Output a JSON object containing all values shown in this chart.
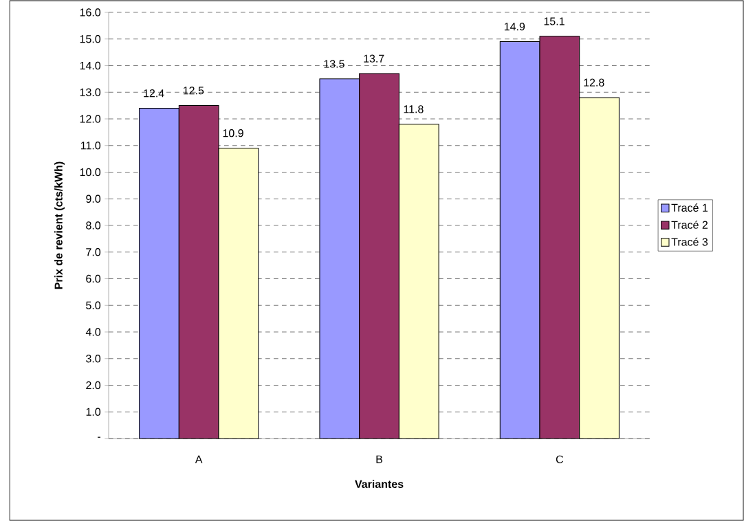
{
  "chart_data": {
    "type": "bar",
    "xlabel": "Variantes",
    "ylabel": "Prix de revient (cts/kWh)",
    "categories": [
      "A",
      "B",
      "C"
    ],
    "series": [
      {
        "name": "Tracé 1",
        "color": "#9999ff",
        "values": [
          12.4,
          13.5,
          14.9
        ]
      },
      {
        "name": "Tracé 2",
        "color": "#993366",
        "values": [
          12.5,
          13.7,
          15.1
        ]
      },
      {
        "name": "Tracé 3",
        "color": "#ffffcc",
        "values": [
          10.9,
          11.8,
          12.8
        ]
      }
    ],
    "ylim": [
      0,
      16
    ],
    "yticks": [
      {
        "value": 0,
        "label": "-"
      },
      {
        "value": 1,
        "label": "1.0"
      },
      {
        "value": 2,
        "label": "2.0"
      },
      {
        "value": 3,
        "label": "3.0"
      },
      {
        "value": 4,
        "label": "4.0"
      },
      {
        "value": 5,
        "label": "5.0"
      },
      {
        "value": 6,
        "label": "6.0"
      },
      {
        "value": 7,
        "label": "7.0"
      },
      {
        "value": 8,
        "label": "8.0"
      },
      {
        "value": 9,
        "label": "9.0"
      },
      {
        "value": 10,
        "label": "10.0"
      },
      {
        "value": 11,
        "label": "11.0"
      },
      {
        "value": 12,
        "label": "12.0"
      },
      {
        "value": 13,
        "label": "13.0"
      },
      {
        "value": 14,
        "label": "14.0"
      },
      {
        "value": 15,
        "label": "15.0"
      },
      {
        "value": 16,
        "label": "16.0"
      }
    ],
    "grid": "y",
    "legend": "right",
    "data_labels": true
  }
}
